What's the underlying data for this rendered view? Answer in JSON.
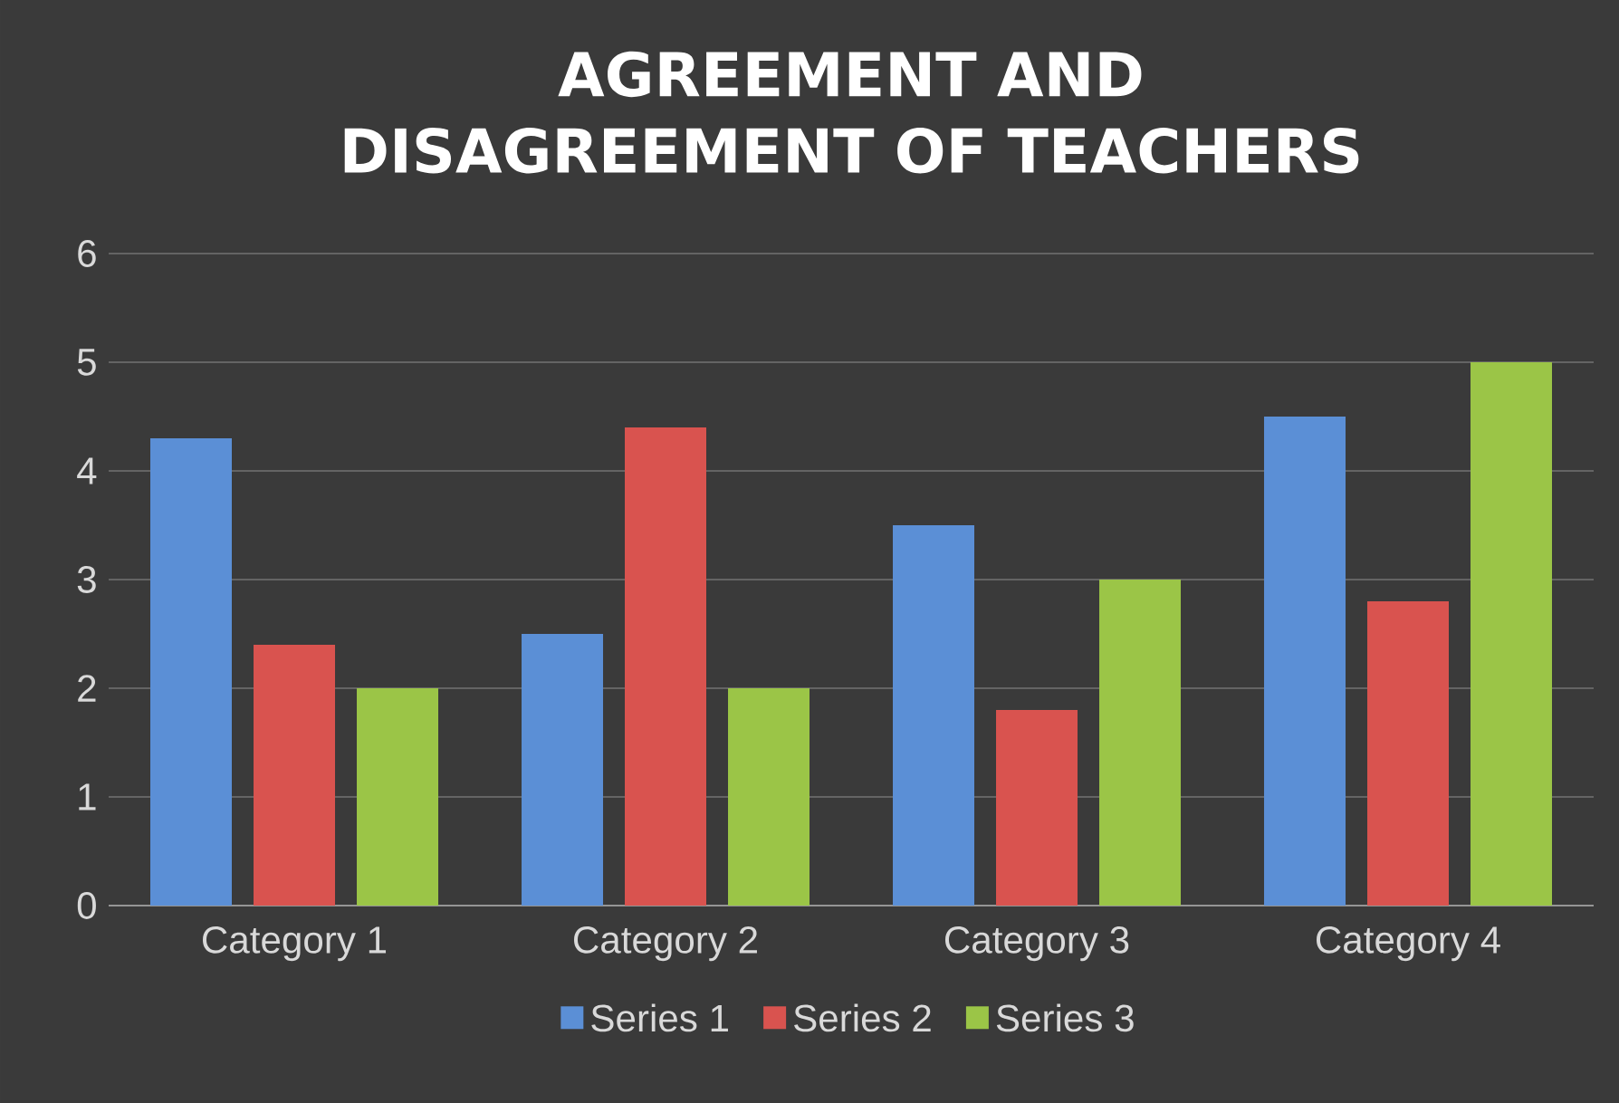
{
  "chart_data": {
    "type": "bar",
    "title": "AGREEMENT AND DISAGREEMENT OF TEACHERS",
    "categories": [
      "Category 1",
      "Category 2",
      "Category 3",
      "Category 4"
    ],
    "series": [
      {
        "name": "Series 1",
        "color": "#5b8fd6",
        "values": [
          4.3,
          2.5,
          3.5,
          4.5
        ]
      },
      {
        "name": "Series 2",
        "color": "#d9534f",
        "values": [
          2.4,
          4.4,
          1.8,
          2.8
        ]
      },
      {
        "name": "Series 3",
        "color": "#9bc547",
        "values": [
          2.0,
          2.0,
          3.0,
          5.0
        ]
      }
    ],
    "ylim": [
      0,
      6
    ],
    "yticks": [
      0,
      1,
      2,
      3,
      4,
      5,
      6
    ],
    "grid": "y",
    "legend": "bottom"
  }
}
